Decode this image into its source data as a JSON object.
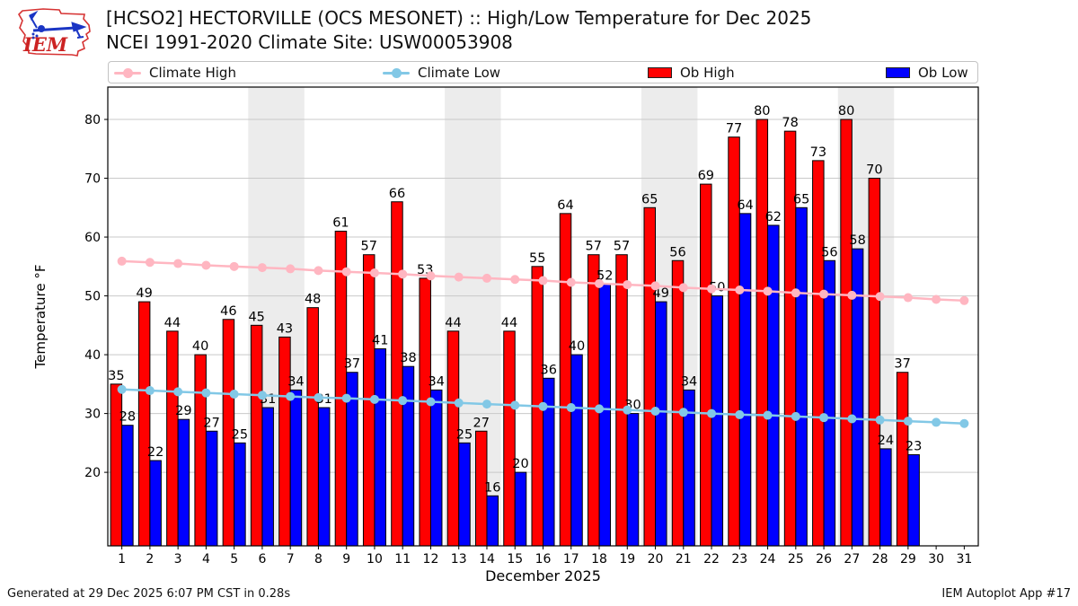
{
  "header": {
    "title": "[HCSO2] HECTORVILLE (OCS MESONET) :: High/Low Temperature for Dec 2025",
    "subtitle": "NCEI 1991-2020 Climate Site: USW00053908",
    "logo_text": "IEM"
  },
  "legend": {
    "items": [
      {
        "label": "Climate High",
        "type": "line",
        "color": "#ffb6c1"
      },
      {
        "label": "Climate Low",
        "type": "line",
        "color": "#82c8e6"
      },
      {
        "label": "Ob High",
        "type": "patch",
        "color": "#ff0000"
      },
      {
        "label": "Ob Low",
        "type": "patch",
        "color": "#0000ff"
      }
    ]
  },
  "footer": {
    "left": "Generated at 29 Dec 2025 6:07 PM CST in 0.28s",
    "right": "IEM Autoplot App #17"
  },
  "chart_data": {
    "type": "bar",
    "title": "[HCSO2] HECTORVILLE (OCS MESONET) :: High/Low Temperature for Dec 2025",
    "subtitle": "NCEI 1991-2020 Climate Site: USW00053908",
    "xlabel": "December 2025",
    "ylabel": "Temperature °F",
    "x": [
      1,
      2,
      3,
      4,
      5,
      6,
      7,
      8,
      9,
      10,
      11,
      12,
      13,
      14,
      15,
      16,
      17,
      18,
      19,
      20,
      21,
      22,
      23,
      24,
      25,
      26,
      27,
      28,
      29,
      30,
      31
    ],
    "series": [
      {
        "name": "Ob High",
        "type": "bar",
        "color": "#ff0000",
        "values": [
          35,
          49,
          44,
          40,
          46,
          45,
          43,
          48,
          61,
          57,
          66,
          53,
          44,
          27,
          44,
          55,
          64,
          57,
          57,
          65,
          56,
          69,
          77,
          80,
          78,
          73,
          80,
          70,
          37,
          null,
          null
        ]
      },
      {
        "name": "Ob Low",
        "type": "bar",
        "color": "#0000ff",
        "values": [
          28,
          22,
          29,
          27,
          25,
          31,
          34,
          31,
          37,
          41,
          38,
          34,
          25,
          16,
          20,
          36,
          40,
          52,
          30,
          49,
          34,
          50,
          64,
          62,
          65,
          56,
          58,
          24,
          23,
          null,
          null
        ]
      },
      {
        "name": "Climate High",
        "type": "line",
        "color": "#ffb6c1",
        "values": [
          55.9,
          55.7,
          55.5,
          55.2,
          55.0,
          54.8,
          54.6,
          54.3,
          54.1,
          53.9,
          53.7,
          53.4,
          53.2,
          53.0,
          52.8,
          52.6,
          52.3,
          52.1,
          51.9,
          51.7,
          51.4,
          51.2,
          51.0,
          50.8,
          50.5,
          50.3,
          50.1,
          49.9,
          49.7,
          49.4,
          49.2
        ]
      },
      {
        "name": "Climate Low",
        "type": "line",
        "color": "#82c8e6",
        "values": [
          34.1,
          33.9,
          33.7,
          33.5,
          33.3,
          33.1,
          32.9,
          32.7,
          32.6,
          32.4,
          32.2,
          32.0,
          31.8,
          31.6,
          31.4,
          31.2,
          31.0,
          30.8,
          30.6,
          30.4,
          30.2,
          30.0,
          29.8,
          29.7,
          29.5,
          29.3,
          29.1,
          28.9,
          28.7,
          28.5,
          28.3
        ]
      }
    ],
    "ylim": [
      7.5,
      85.5
    ],
    "yticks": [
      20,
      30,
      40,
      50,
      60,
      70,
      80
    ],
    "xticks": [
      1,
      2,
      3,
      4,
      5,
      6,
      7,
      8,
      9,
      10,
      11,
      12,
      13,
      14,
      15,
      16,
      17,
      18,
      19,
      20,
      21,
      22,
      23,
      24,
      25,
      26,
      27,
      28,
      29,
      30,
      31
    ],
    "weekend_bands": [
      [
        5.5,
        7.5
      ],
      [
        12.5,
        14.5
      ],
      [
        19.5,
        21.5
      ],
      [
        26.5,
        28.5
      ]
    ],
    "grid": "horizontal",
    "grid_color": "#c9c9c9",
    "band_color": "#ececec",
    "bar_edge_color": "#000000",
    "legend_position": "top",
    "value_labels": true
  }
}
